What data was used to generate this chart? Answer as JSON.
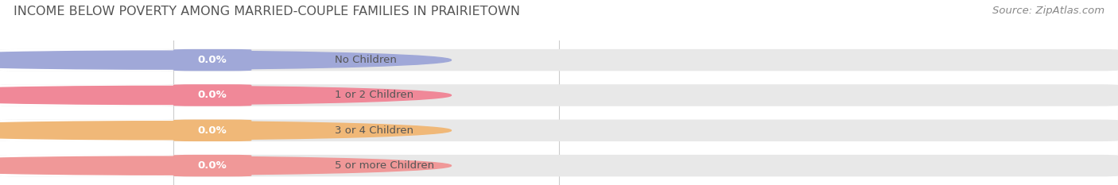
{
  "title": "INCOME BELOW POVERTY AMONG MARRIED-COUPLE FAMILIES IN PRAIRIETOWN",
  "source": "Source: ZipAtlas.com",
  "categories": [
    "No Children",
    "1 or 2 Children",
    "3 or 4 Children",
    "5 or more Children"
  ],
  "values": [
    0.0,
    0.0,
    0.0,
    0.0
  ],
  "bar_colors": [
    "#a0a8d8",
    "#f08898",
    "#f0b878",
    "#f09898"
  ],
  "background_color": "#ffffff",
  "bar_bg_color": "#e8e8e8",
  "title_fontsize": 11.5,
  "source_fontsize": 9.5,
  "label_fontsize": 9.5,
  "value_fontsize": 9.5,
  "tick_fontsize": 9,
  "fig_width": 14.06,
  "fig_height": 2.33
}
